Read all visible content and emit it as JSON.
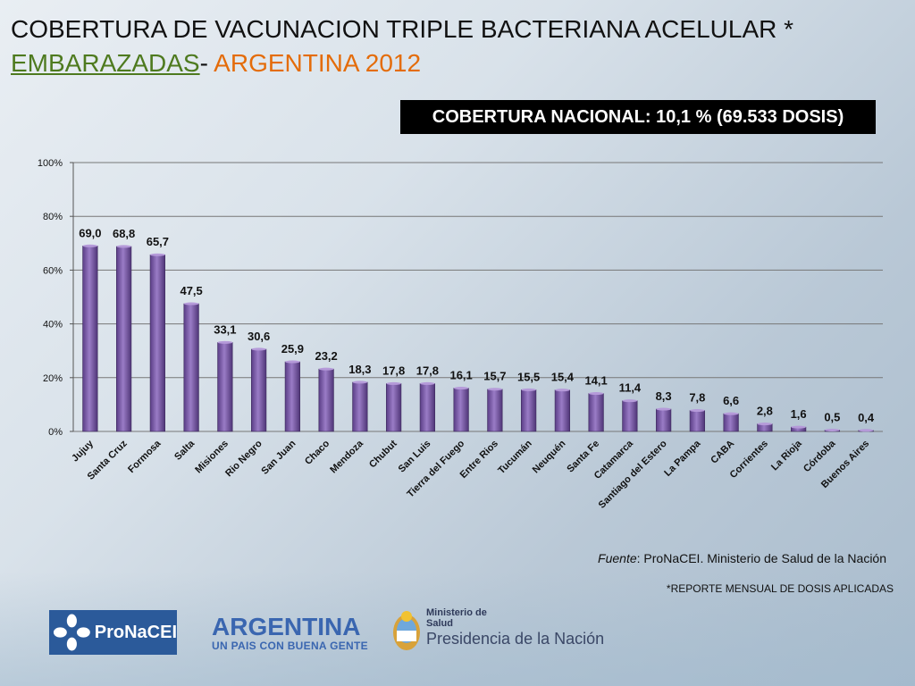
{
  "header": {
    "title_line1": "COBERTURA DE VACUNACION TRIPLE BACTERIANA ACELULAR *",
    "title_line2_a": "EMBARAZADAS",
    "title_line2_b": "- ",
    "title_line2_c": "ARGENTINA 2012",
    "national_box": "COBERTURA NACIONAL: 10,1 % (69.533 DOSIS)"
  },
  "chart_data": {
    "type": "bar",
    "categories": [
      "Jujuy",
      "Santa Cruz",
      "Formosa",
      "Salta",
      "Misiones",
      "Rio Negro",
      "San Juan",
      "Chaco",
      "Mendoza",
      "Chubut",
      "San Luis",
      "Tierra del Fuego",
      "Entre Rios",
      "Tucumán",
      "Neuquén",
      "Santa Fe",
      "Catamarca",
      "Santiago del Estero",
      "La Pampa",
      "CABA",
      "Corrientes",
      "La Rioja",
      "Córdoba",
      "Buenos Aires"
    ],
    "values": [
      69.0,
      68.8,
      65.7,
      47.5,
      33.1,
      30.6,
      25.9,
      23.2,
      18.3,
      17.8,
      17.8,
      16.1,
      15.7,
      15.5,
      15.4,
      14.1,
      11.4,
      8.3,
      7.8,
      6.6,
      2.8,
      1.6,
      0.5,
      0.4
    ],
    "value_labels": [
      "69,0",
      "68,8",
      "65,7",
      "47,5",
      "33,1",
      "30,6",
      "25,9",
      "23,2",
      "18,3",
      "17,8",
      "17,8",
      "16,1",
      "15,7",
      "15,5",
      "15,4",
      "14,1",
      "11,4",
      "8,3",
      "7,8",
      "6,6",
      "2,8",
      "1,6",
      "0,5",
      "0,4"
    ],
    "ylim": [
      0,
      100
    ],
    "yticks": [
      "0%",
      "20%",
      "40%",
      "60%",
      "80%",
      "100%"
    ],
    "grid": true,
    "bar_color": "#7b5aa6"
  },
  "footer": {
    "source_label": "Fuente",
    "source_text": ": ProNaCEI. Ministerio de Salud de la Nación",
    "note": "*REPORTE MENSUAL DE DOSIS APLICADAS",
    "logo1_text": "ProNaCEI",
    "logo2_big": "ARGENTINA",
    "logo2_small": "UN PAIS CON BUENA GENTE",
    "logo3_line1": "Ministerio de",
    "logo3_line2": "Salud",
    "logo3_line3": "Presidencia de la Nación"
  }
}
